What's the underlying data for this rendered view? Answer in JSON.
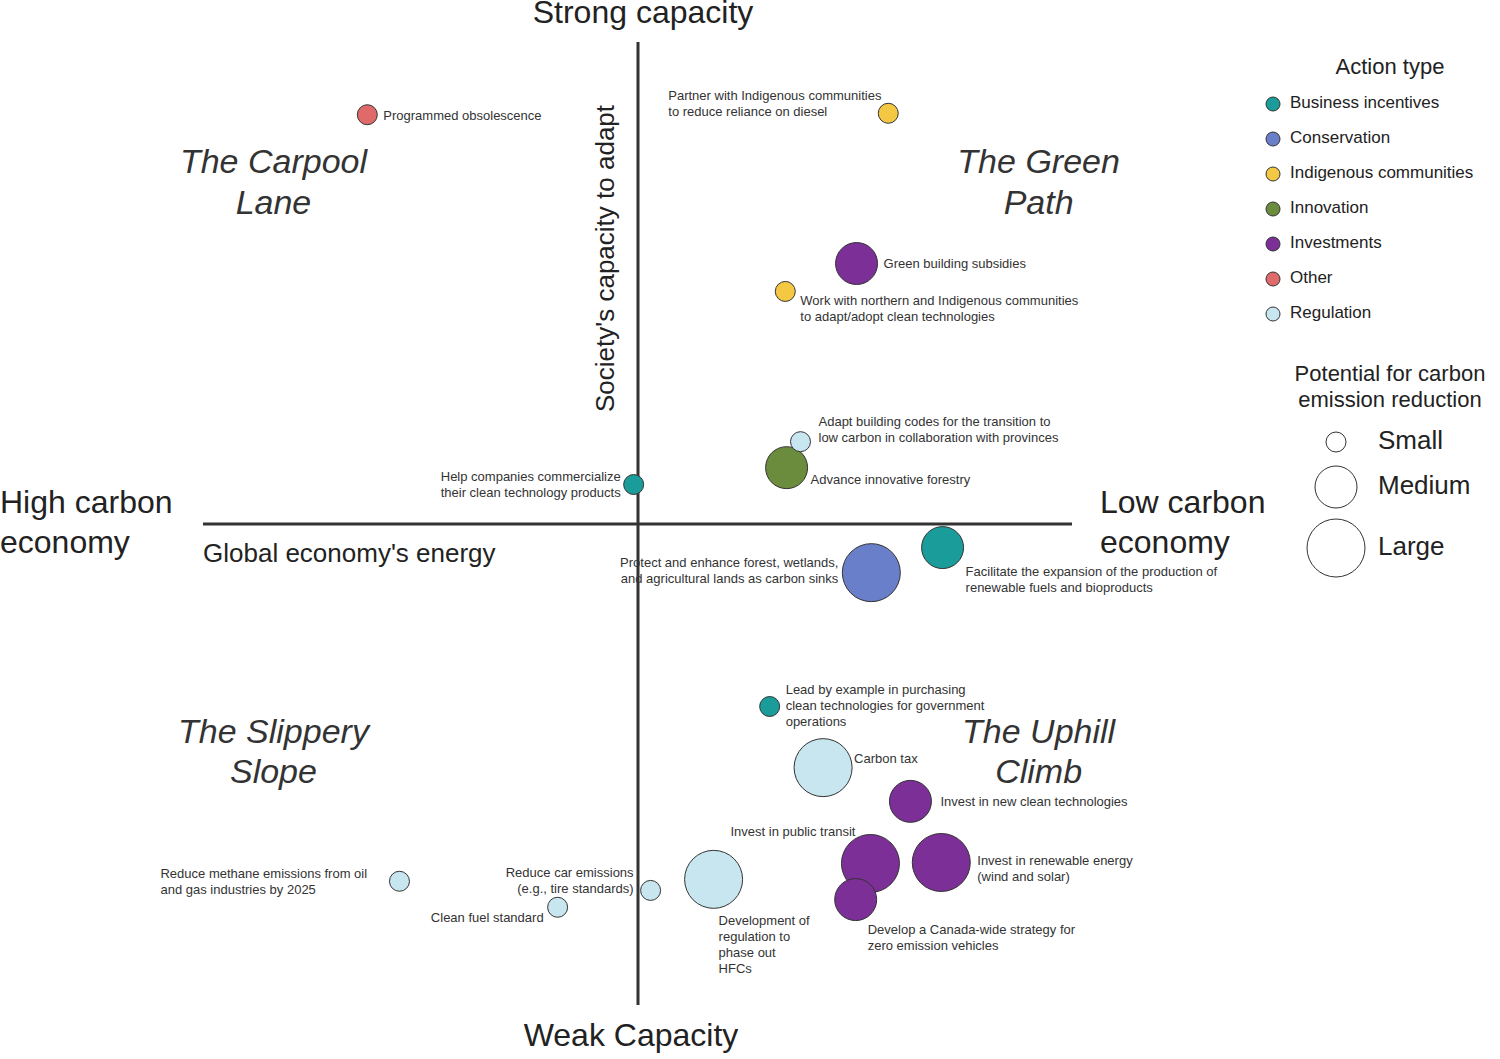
{
  "chart_data": {
    "type": "scatter",
    "x_label": "Global economy's energy",
    "y_label": "Society's capacity to adapt",
    "x_end_labels": [
      "High carbon\neconomy",
      "Low carbon\neconomy"
    ],
    "y_end_labels": [
      "Weak Capacity",
      "Strong capacity"
    ],
    "quadrants": [
      "The Carpool\nLane",
      "The Green\nPath",
      "The Slippery\nSlope",
      "The Uphill\nClimb"
    ],
    "xlim": [
      -10,
      10
    ],
    "ylim": [
      -10,
      10
    ],
    "xticks": [],
    "yticks": [],
    "tick_labels": false,
    "grid": false,
    "legend": "top-right",
    "legend_title": "Action type",
    "series": [
      {
        "name": "Business incentives",
        "color": "#1a9c9a"
      },
      {
        "name": "Conservation",
        "color": "#6a7fc9"
      },
      {
        "name": "Indigenous communities",
        "color": "#f4c842"
      },
      {
        "name": "Innovation",
        "color": "#6b8b3d"
      },
      {
        "name": "Investments",
        "color": "#7b2f97"
      },
      {
        "name": "Other",
        "color": "#e06a6a"
      },
      {
        "name": "Regulation",
        "color": "#c8e6ef"
      }
    ],
    "size_legend": {
      "title": "Potential for carbon\nemission reduction",
      "levels": [
        "Small",
        "Medium",
        "Large"
      ]
    },
    "points": [
      {
        "label": "Programmed obsolescence",
        "type": "Other",
        "size": "Small",
        "x": -6.23,
        "y": 8.5
      },
      {
        "label": "Partner with Indigenous communities\nto reduce reliance on diesel",
        "type": "Indigenous communities",
        "size": "Small",
        "x": 5.76,
        "y": 8.53
      },
      {
        "label": "Green building subsidies",
        "type": "Investments",
        "size": "Medium",
        "x": 5.03,
        "y": 5.41
      },
      {
        "label": "Work with northern and Indigenous communities\nto adapt/adopt clean technologies",
        "type": "Indigenous communities",
        "size": "Small",
        "x": 3.39,
        "y": 4.83
      },
      {
        "label": "Adapt building codes for the transition to\nlow carbon in collaboration with provinces",
        "type": "Regulation",
        "size": "Small",
        "x": 3.74,
        "y": 1.71
      },
      {
        "label": "Advance innovative forestry",
        "type": "Innovation",
        "size": "Medium",
        "x": 3.42,
        "y": 1.17
      },
      {
        "label": "Help companies commercialize\ntheir clean technology products",
        "type": "Business incentives",
        "size": "Small",
        "x": -0.1,
        "y": 0.82
      },
      {
        "label": "Protect and enhance forest, wetlands,\nand agricultural lands as carbon sinks",
        "type": "Conservation",
        "size": "Large",
        "x": 5.37,
        "y": -1.01
      },
      {
        "label": "Facilitate the expansion of the production of\nrenewable fuels and bioproducts",
        "type": "Business incentives",
        "size": "Medium",
        "x": 7.01,
        "y": -0.49
      },
      {
        "label": "Lead by example in purchasing\nclean technologies for government\noperations",
        "type": "Business incentives",
        "size": "Small",
        "x": 3.03,
        "y": -3.79
      },
      {
        "label": "Carbon tax",
        "type": "Regulation",
        "size": "Large",
        "x": 4.26,
        "y": -5.06
      },
      {
        "label": "Invest in new clean technologies",
        "type": "Investments",
        "size": "Medium",
        "x": 6.27,
        "y": -5.76
      },
      {
        "label": "Invest in public transit",
        "type": "Investments",
        "size": "Large",
        "x": 5.35,
        "y": -7.05
      },
      {
        "label": "Invest in renewable energy\n(wind and solar)",
        "type": "Investments",
        "size": "Large",
        "x": 6.98,
        "y": -7.03
      },
      {
        "label": "Develop a Canada-wide strategy for\nzero emission vehicles",
        "type": "Investments",
        "size": "Medium",
        "x": 5.01,
        "y": -7.8
      },
      {
        "label": "Development of\nregulation to\nphase out\nHFCs",
        "type": "Regulation",
        "size": "Large",
        "x": 1.74,
        "y": -7.38
      },
      {
        "label": "Reduce car emissions\n(e.g., tire standards)",
        "type": "Regulation",
        "size": "Small",
        "x": 0.29,
        "y": -7.61
      },
      {
        "label": "Clean fuel standard",
        "type": "Regulation",
        "size": "Small",
        "x": -1.85,
        "y": -7.96
      },
      {
        "label": "Reduce methane emissions from oil\nand gas industries by 2025",
        "type": "Regulation",
        "size": "Small",
        "x": -5.49,
        "y": -7.42
      }
    ]
  }
}
